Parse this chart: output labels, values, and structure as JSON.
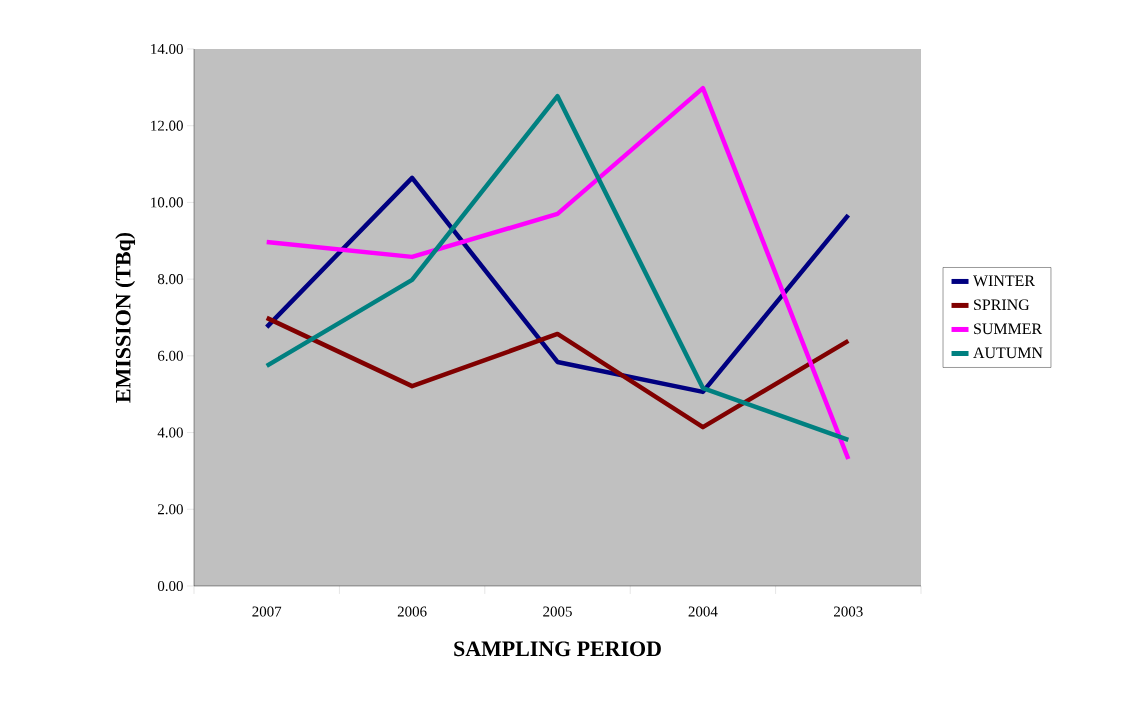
{
  "chart_data": {
    "type": "line",
    "xlabel": "SAMPLING PERIOD",
    "ylabel": "EMISSION (TBq)",
    "categories": [
      "2007",
      "2006",
      "2005",
      "2004",
      "2003"
    ],
    "series": [
      {
        "name": "WINTER",
        "color": "#000080",
        "values": [
          6.75,
          10.64,
          5.84,
          5.06,
          9.67
        ]
      },
      {
        "name": "SPRING",
        "color": "#800000",
        "values": [
          6.99,
          5.21,
          6.57,
          4.14,
          6.39
        ]
      },
      {
        "name": "SUMMER",
        "color": "#ff00ff",
        "values": [
          8.97,
          8.58,
          9.7,
          12.98,
          3.31
        ]
      },
      {
        "name": "AUTUMN",
        "color": "#008080",
        "values": [
          5.74,
          7.98,
          12.77,
          5.16,
          3.81
        ]
      }
    ],
    "ylim": [
      0,
      14
    ],
    "yticks": [
      {
        "value": 0,
        "label": "0.00"
      },
      {
        "value": 2,
        "label": "2.00"
      },
      {
        "value": 4,
        "label": "4.00"
      },
      {
        "value": 6,
        "label": "6.00"
      },
      {
        "value": 8,
        "label": "8.00"
      },
      {
        "value": 10,
        "label": "10.00"
      },
      {
        "value": 12,
        "label": "12.00"
      },
      {
        "value": 14,
        "label": "14.00"
      }
    ],
    "grid": false,
    "legend": "right",
    "marker": "none",
    "line_style": "solid"
  }
}
